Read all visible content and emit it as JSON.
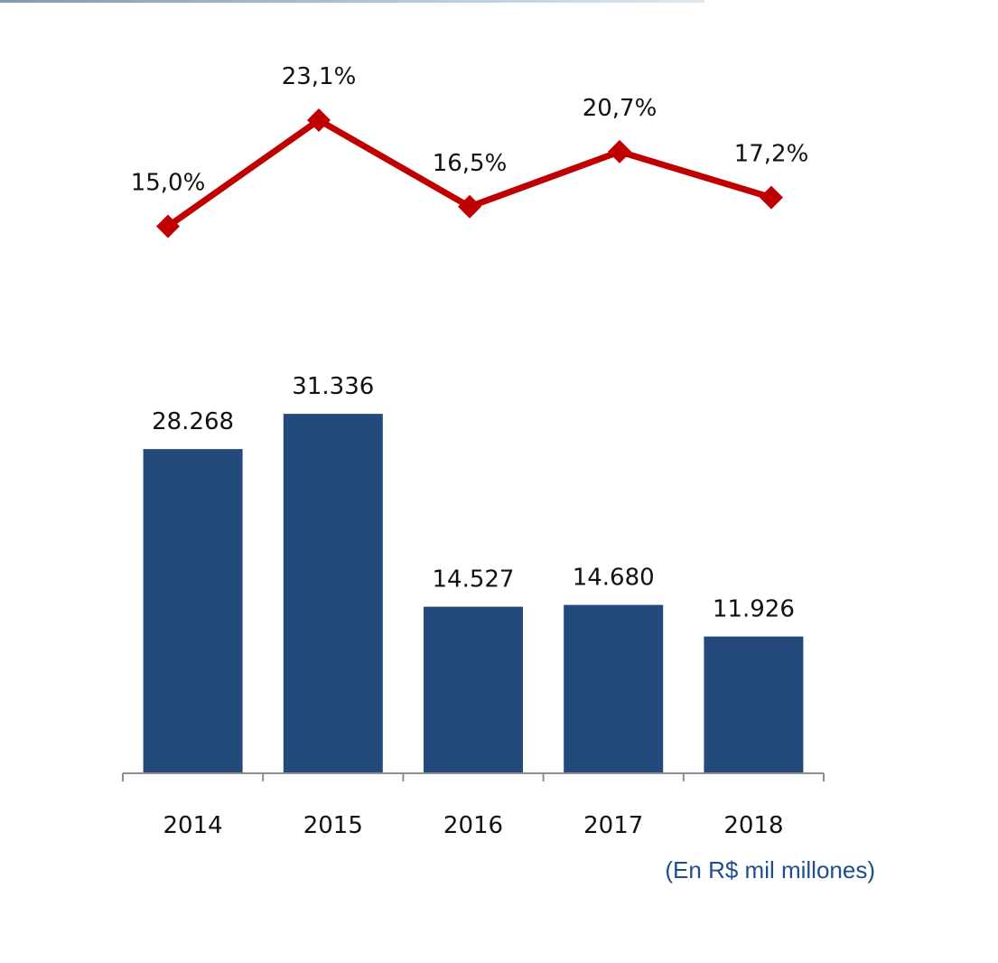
{
  "chart_data": {
    "type": "bar",
    "categories": [
      "2014",
      "2015",
      "2016",
      "2017",
      "2018"
    ],
    "bar_series": {
      "values": [
        28268,
        31336,
        14527,
        14680,
        11926
      ],
      "labels": [
        "28.268",
        "31.336",
        "14.527",
        "14.680",
        "11.926"
      ],
      "color": "#234a7a"
    },
    "line_series": {
      "values": [
        15.0,
        23.1,
        16.5,
        20.7,
        17.2
      ],
      "labels": [
        "15,0%",
        "23,1%",
        "16,5%",
        "20,7%",
        "17,2%"
      ],
      "color": "#c00000",
      "marker": "diamond"
    },
    "unit_note": "(En R$ mil millones)",
    "grid": false,
    "legend": "none"
  }
}
